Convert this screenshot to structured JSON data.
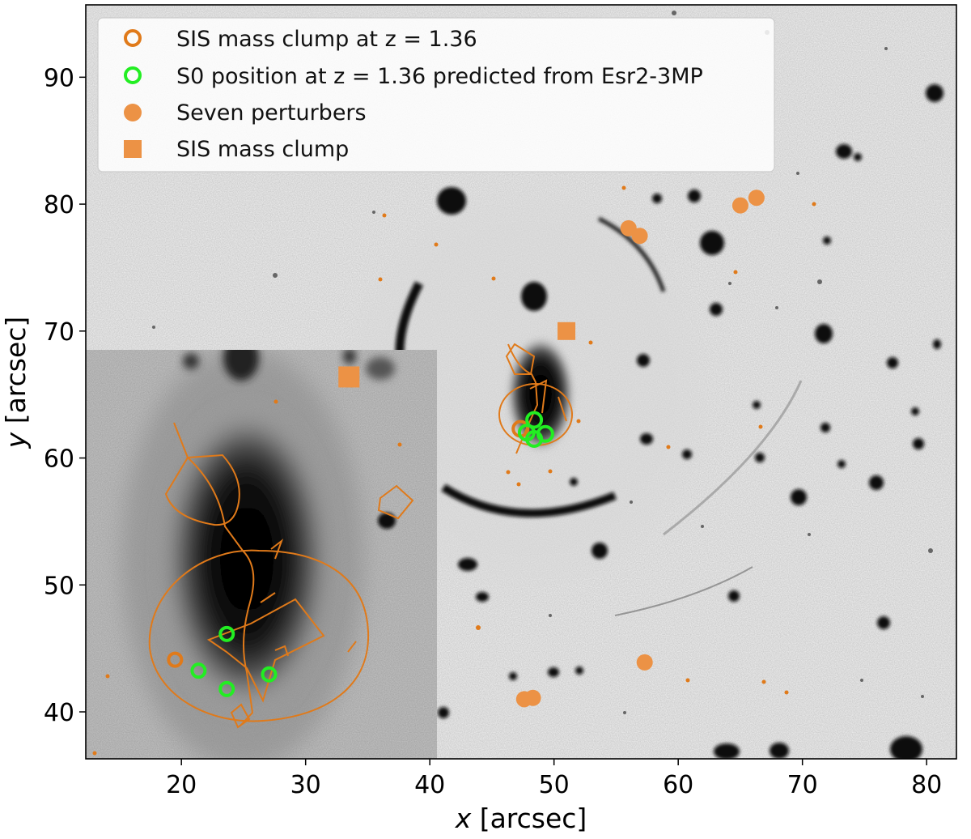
{
  "chart_data": {
    "type": "scatter",
    "title": "",
    "xlabel": "x [arcsec]",
    "ylabel": "y [arcsec]",
    "xlabel_var": "x",
    "xlabel_unit": " [arcsec]",
    "ylabel_var": "y",
    "ylabel_unit": " [arcsec]",
    "xlim": [
      12.3,
      82.4
    ],
    "ylim": [
      36.3,
      95.7
    ],
    "xticks": [
      20,
      30,
      40,
      50,
      60,
      70,
      80
    ],
    "yticks": [
      40,
      50,
      60,
      70,
      80,
      90
    ],
    "grid": false,
    "legend_position": "top-left",
    "colors": {
      "orange": "#e07a1a",
      "orange_fill": "#ec9245",
      "green": "#22ee22",
      "background": "#ffffff"
    },
    "series": [
      {
        "name": "SIS mass clump at z = 1.36",
        "marker": "open-circle",
        "color": "#e07a1a",
        "points": [
          [
            47.3,
            62.3
          ]
        ]
      },
      {
        "name": "S0 position at z = 1.36 predicted from Esr2-3MP",
        "marker": "open-circle",
        "color": "#22ee22",
        "points": [
          [
            48.4,
            63.0
          ],
          [
            47.8,
            62.0
          ],
          [
            48.4,
            61.5
          ],
          [
            49.3,
            61.9
          ]
        ]
      },
      {
        "name": "Seven perturbers",
        "marker": "filled-circle",
        "color": "#ec9245",
        "points": [
          [
            56.0,
            78.1
          ],
          [
            56.9,
            77.5
          ],
          [
            65.0,
            79.9
          ],
          [
            66.3,
            80.5
          ],
          [
            57.3,
            43.9
          ],
          [
            47.6,
            41.0
          ],
          [
            48.3,
            41.1
          ]
        ]
      },
      {
        "name": "SIS mass clump",
        "marker": "filled-square",
        "color": "#ec9245",
        "points": [
          [
            51.0,
            70.0
          ]
        ]
      }
    ],
    "zoom_inset": {
      "description": "magnified view of the central lens region",
      "data_extent_x": [
        45.4,
        52.8
      ],
      "data_extent_y": [
        59.6,
        70.8
      ],
      "axes_extent_x": [
        12.3,
        40.3
      ],
      "axes_extent_y": [
        36.3,
        68.7
      ]
    }
  }
}
